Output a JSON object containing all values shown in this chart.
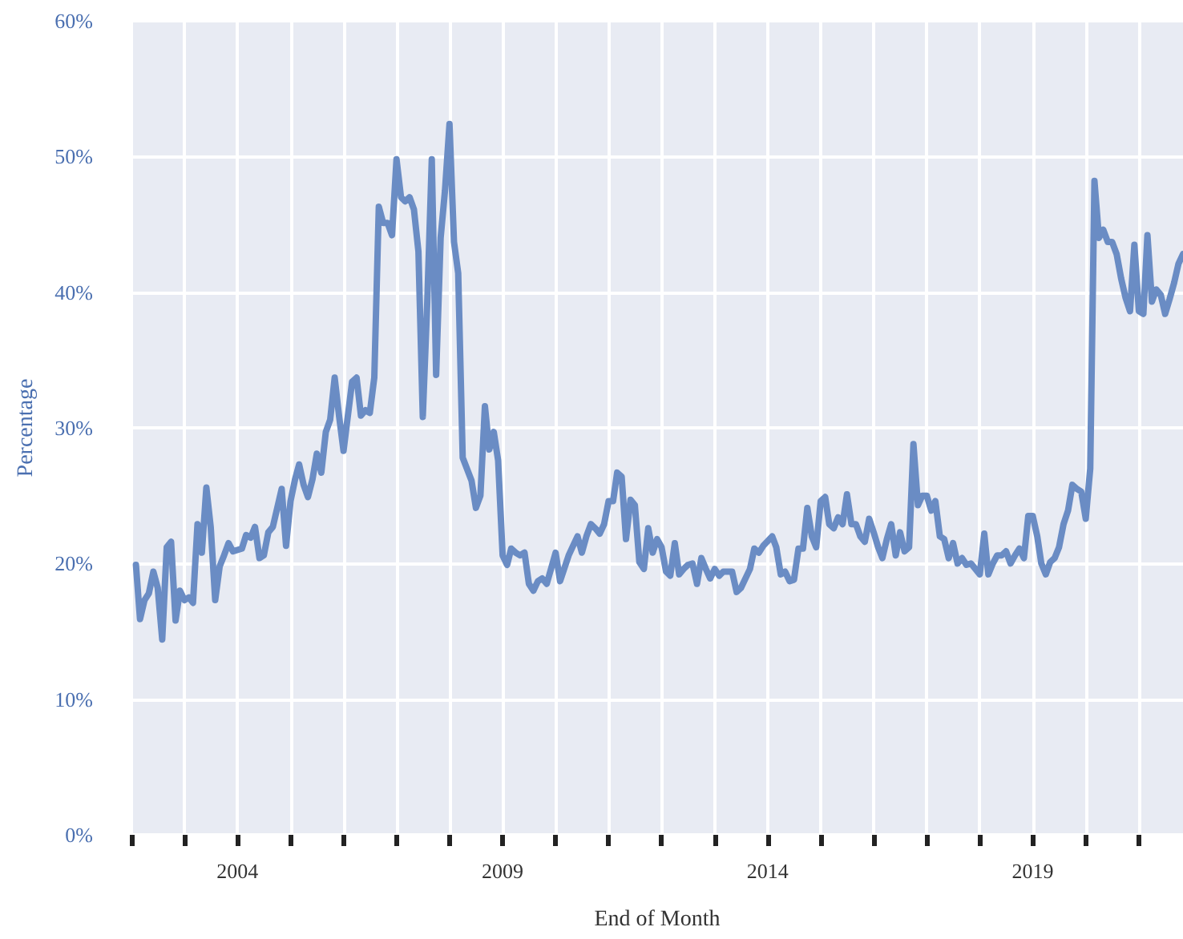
{
  "chart_data": {
    "type": "line",
    "xlabel": "End of Month",
    "ylabel": "Percentage",
    "xlim": [
      "2002-01",
      "2021-11"
    ],
    "xticks": [
      {
        "value": "2002",
        "label": null
      },
      {
        "value": "2003",
        "label": null
      },
      {
        "value": "2004",
        "label": "2004"
      },
      {
        "value": "2005",
        "label": null
      },
      {
        "value": "2006",
        "label": null
      },
      {
        "value": "2007",
        "label": null
      },
      {
        "value": "2008",
        "label": null
      },
      {
        "value": "2009",
        "label": "2009"
      },
      {
        "value": "2010",
        "label": null
      },
      {
        "value": "2011",
        "label": null
      },
      {
        "value": "2012",
        "label": null
      },
      {
        "value": "2013",
        "label": null
      },
      {
        "value": "2014",
        "label": "2014"
      },
      {
        "value": "2015",
        "label": null
      },
      {
        "value": "2016",
        "label": null
      },
      {
        "value": "2017",
        "label": null
      },
      {
        "value": "2018",
        "label": null
      },
      {
        "value": "2019",
        "label": "2019"
      },
      {
        "value": "2020",
        "label": null
      },
      {
        "value": "2021",
        "label": null
      }
    ],
    "ylim": [
      0,
      60
    ],
    "yticks": [
      {
        "value": 0,
        "label": "0%"
      },
      {
        "value": 10,
        "label": "10%"
      },
      {
        "value": 20,
        "label": "20%"
      },
      {
        "value": 30,
        "label": "30%"
      },
      {
        "value": 40,
        "label": "40%"
      },
      {
        "value": 50,
        "label": "50%"
      },
      {
        "value": 60,
        "label": "60%"
      }
    ],
    "grid": true,
    "legend": false,
    "marker": "none",
    "line_style": "solid",
    "series": [
      {
        "color": "#6a8cc4",
        "x": [
          "2002-02",
          "2002-03",
          "2002-04",
          "2002-05",
          "2002-06",
          "2002-07",
          "2002-08",
          "2002-09",
          "2002-10",
          "2002-11",
          "2002-12",
          "2003-01",
          "2003-02",
          "2003-03",
          "2003-04",
          "2003-05",
          "2003-06",
          "2003-07",
          "2003-08",
          "2003-09",
          "2003-10",
          "2003-11",
          "2003-12",
          "2004-02",
          "2004-03",
          "2004-04",
          "2004-05",
          "2004-06",
          "2004-07",
          "2004-08",
          "2004-09",
          "2004-11",
          "2004-12",
          "2005-01",
          "2005-02",
          "2005-03",
          "2005-04",
          "2005-05",
          "2005-06",
          "2005-07",
          "2005-08",
          "2005-09",
          "2005-10",
          "2005-11",
          "2005-12",
          "2006-01",
          "2006-03",
          "2006-04",
          "2006-05",
          "2006-06",
          "2006-07",
          "2006-08",
          "2006-09",
          "2006-10",
          "2006-11",
          "2006-12",
          "2007-01",
          "2007-02",
          "2007-03",
          "2007-04",
          "2007-05",
          "2007-06",
          "2007-07",
          "2007-08",
          "2007-09",
          "2007-10",
          "2007-11",
          "2007-12",
          "2008-01",
          "2008-02",
          "2008-03",
          "2008-04",
          "2008-06",
          "2008-07",
          "2008-08",
          "2008-09",
          "2008-10",
          "2008-11",
          "2008-12",
          "2009-01",
          "2009-02",
          "2009-03",
          "2009-04",
          "2009-05",
          "2009-06",
          "2009-07",
          "2009-08",
          "2009-09",
          "2009-10",
          "2009-11",
          "2010-01",
          "2010-02",
          "2010-03",
          "2010-04",
          "2010-05",
          "2010-06",
          "2010-07",
          "2010-08",
          "2010-09",
          "2010-10",
          "2010-11",
          "2010-12",
          "2011-01",
          "2011-02",
          "2011-03",
          "2011-04",
          "2011-05",
          "2011-06",
          "2011-07",
          "2011-08",
          "2011-09",
          "2011-10",
          "2011-11",
          "2011-12",
          "2012-01",
          "2012-02",
          "2012-03",
          "2012-04",
          "2012-05",
          "2012-06",
          "2012-07",
          "2012-08",
          "2012-09",
          "2012-10",
          "2012-11",
          "2012-12",
          "2013-01",
          "2013-02",
          "2013-03",
          "2013-04",
          "2013-05",
          "2013-06",
          "2013-07",
          "2013-09",
          "2013-10",
          "2013-11",
          "2013-12",
          "2014-02",
          "2014-03",
          "2014-04",
          "2014-05",
          "2014-06",
          "2014-07",
          "2014-08",
          "2014-09",
          "2014-10",
          "2014-11",
          "2014-12",
          "2015-01",
          "2015-02",
          "2015-03",
          "2015-04",
          "2015-05",
          "2015-06",
          "2015-07",
          "2015-08",
          "2015-09",
          "2015-10",
          "2015-11",
          "2015-12",
          "2016-01",
          "2016-02",
          "2016-03",
          "2016-04",
          "2016-05",
          "2016-06",
          "2016-07",
          "2016-08",
          "2016-09",
          "2016-10",
          "2016-11",
          "2016-12",
          "2017-01",
          "2017-02",
          "2017-03",
          "2017-04",
          "2017-05",
          "2017-06",
          "2017-07",
          "2017-08",
          "2017-09",
          "2017-10",
          "2017-11",
          "2018-01",
          "2018-02",
          "2018-03",
          "2018-04",
          "2018-05",
          "2018-06",
          "2018-07",
          "2018-08",
          "2018-09",
          "2018-10",
          "2018-11",
          "2018-12",
          "2019-01",
          "2019-02",
          "2019-03",
          "2019-04",
          "2019-05",
          "2019-06",
          "2019-07",
          "2019-08",
          "2019-09",
          "2019-10",
          "2019-11",
          "2019-12",
          "2020-01",
          "2020-02",
          "2020-03",
          "2020-04",
          "2020-05",
          "2020-06",
          "2020-07",
          "2020-08",
          "2020-09",
          "2020-10",
          "2020-11",
          "2020-12",
          "2021-01",
          "2021-02",
          "2021-03",
          "2021-04",
          "2021-05",
          "2021-06",
          "2021-07",
          "2021-08",
          "2021-09",
          "2021-10",
          "2021-11"
        ],
        "values": [
          19.9,
          15.9,
          17.3,
          17.8,
          19.4,
          18.2,
          14.4,
          21.2,
          21.6,
          15.8,
          18,
          17.3,
          17.5,
          17.1,
          22.9,
          20.8,
          25.6,
          22.7,
          17.3,
          19.8,
          20.6,
          21.5,
          20.9,
          21.1,
          22.1,
          21.9,
          22.7,
          20.4,
          20.6,
          22.3,
          22.7,
          25.5,
          21.3,
          24.6,
          26.2,
          27.3,
          25.8,
          24.9,
          26.2,
          28.1,
          26.7,
          29.7,
          30.6,
          33.7,
          30.9,
          28.3,
          33.4,
          33.7,
          30.9,
          31.3,
          31.1,
          33.7,
          46.3,
          45.1,
          45.1,
          44.2,
          49.8,
          47,
          46.7,
          47,
          46.1,
          43,
          30.8,
          39.3,
          49.8,
          33.9,
          44,
          47.5,
          52.4,
          43.7,
          41.4,
          27.8,
          26.1,
          24.1,
          25,
          31.6,
          28.4,
          29.7,
          27.6,
          20.6,
          19.9,
          21.1,
          20.8,
          20.6,
          20.8,
          18.5,
          18,
          18.7,
          18.9,
          18.5,
          20.8,
          18.7,
          19.6,
          20.6,
          21.3,
          22,
          20.8,
          22,
          22.9,
          22.6,
          22.2,
          22.9,
          24.6,
          24.6,
          26.7,
          26.4,
          21.8,
          24.7,
          24.3,
          20.1,
          19.6,
          22.6,
          20.8,
          21.8,
          21.2,
          19.4,
          19.1,
          21.5,
          19.2,
          19.6,
          19.9,
          20,
          18.5,
          20.4,
          19.6,
          18.9,
          19.6,
          19.1,
          19.4,
          19.4,
          19.4,
          17.9,
          18.2,
          19.6,
          21.1,
          20.8,
          21.3,
          22,
          21.2,
          19.2,
          19.4,
          18.7,
          18.8,
          21.1,
          21.1,
          24.1,
          22,
          21.2,
          24.6,
          24.9,
          22.9,
          22.6,
          23.4,
          22.9,
          25.1,
          22.9,
          22.9,
          22,
          21.6,
          23.3,
          22.3,
          21.2,
          20.4,
          21.8,
          22.9,
          20.6,
          22.3,
          20.9,
          21.2,
          28.8,
          24.3,
          25,
          25,
          23.9,
          24.6,
          22,
          21.8,
          20.4,
          21.5,
          20,
          20.4,
          19.9,
          20,
          19.2,
          22.2,
          19.2,
          20,
          20.6,
          20.6,
          20.9,
          20,
          20.6,
          21.1,
          20.4,
          23.5,
          23.5,
          22,
          20,
          19.2,
          20.1,
          20.4,
          21.2,
          22.9,
          23.9,
          25.8,
          25.5,
          25.3,
          23.3,
          27,
          48.2,
          44,
          44.6,
          43.7,
          43.7,
          42.8,
          41,
          39.6,
          38.6,
          43.5,
          38.6,
          38.4,
          44.2,
          39.3,
          40.2,
          39.8,
          38.4,
          39.5,
          40.7,
          42.1,
          42.8
        ]
      }
    ]
  }
}
